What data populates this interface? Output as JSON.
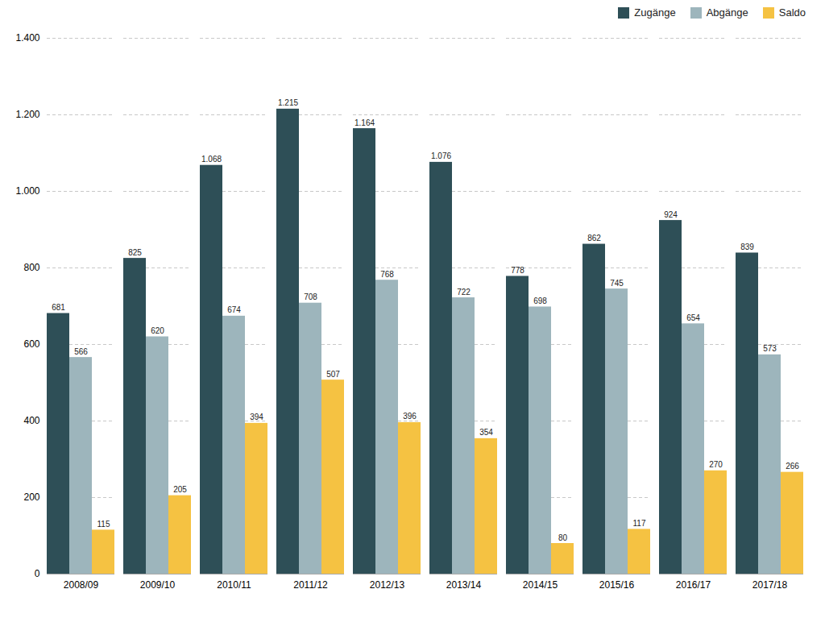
{
  "chart_data": {
    "type": "bar",
    "categories": [
      "2008/09",
      "2009/10",
      "2010/11",
      "2011/12",
      "2012/13",
      "2013/14",
      "2014/15",
      "2015/16",
      "2016/17",
      "2017/18"
    ],
    "series": [
      {
        "name": "Zugänge",
        "color": "#2e4f57",
        "values": [
          681,
          825,
          1068,
          1215,
          1164,
          1076,
          778,
          862,
          924,
          839
        ],
        "value_labels": [
          "681",
          "825",
          "1.068",
          "1.215",
          "1.164",
          "1.076",
          "778",
          "862",
          "924",
          "839"
        ]
      },
      {
        "name": "Abgänge",
        "color": "#9db5bc",
        "values": [
          566,
          620,
          674,
          708,
          768,
          722,
          698,
          745,
          654,
          573
        ]
      },
      {
        "name": "Saldo",
        "color": "#f5c242",
        "values": [
          115,
          205,
          394,
          507,
          396,
          354,
          80,
          117,
          270,
          266
        ]
      }
    ],
    "ylim": [
      0,
      1400
    ],
    "yticks": [
      0,
      200,
      400,
      600,
      800,
      {
        "value": 1000,
        "label": "1.000"
      },
      {
        "value": 1200,
        "label": "1.200"
      },
      {
        "value": 1400,
        "label": "1.400"
      }
    ],
    "grid": true,
    "legend": "upper right",
    "data_labels": true
  }
}
